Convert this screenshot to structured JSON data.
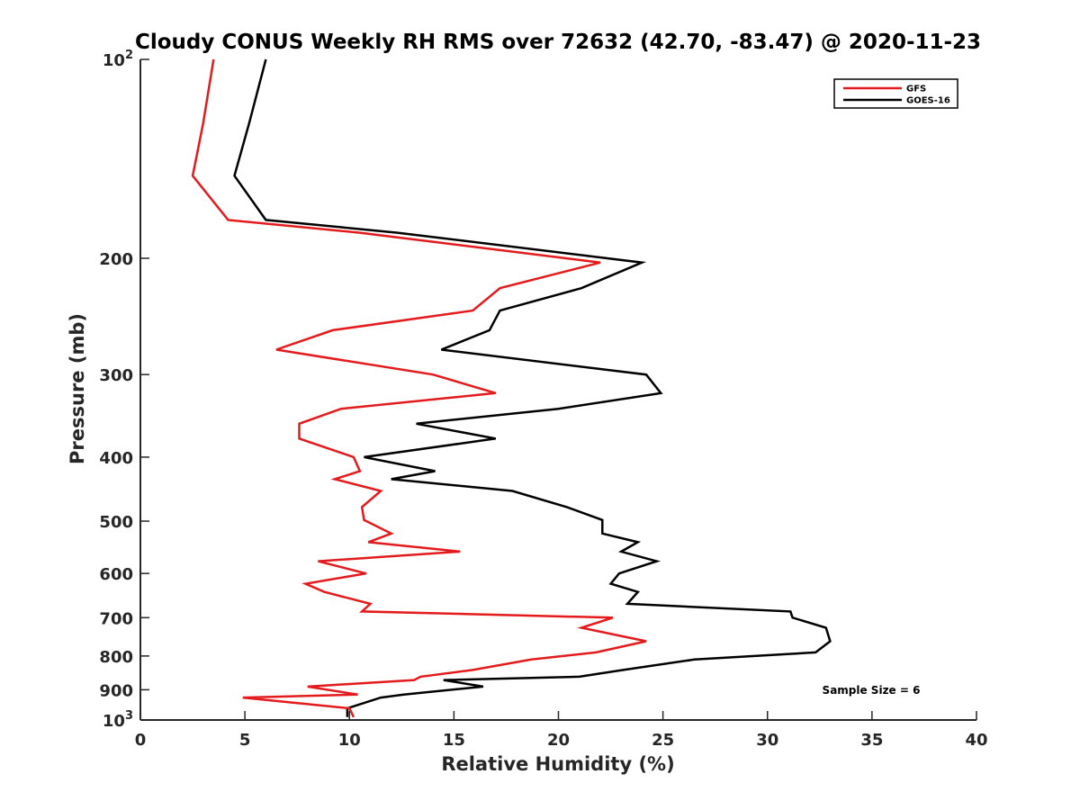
{
  "chart_data": {
    "type": "line",
    "title": "Cloudy CONUS Weekly RH RMS over 72632 (42.70, -83.47) @ 2020-11-23",
    "xlabel": "Relative Humidity (%)",
    "ylabel": "Pressure (mb)",
    "xlim": [
      0,
      40
    ],
    "ylim": [
      100,
      1000
    ],
    "y_scale": "log",
    "y_reversed": true,
    "grid": false,
    "legend_position": "top-right",
    "x_ticks": [
      "0",
      "5",
      "10",
      "15",
      "20",
      "25",
      "30",
      "35",
      "40"
    ],
    "y_ticks": [
      {
        "value": 100,
        "label": "10",
        "sup": "2"
      },
      {
        "value": 200,
        "label": "200",
        "sup": ""
      },
      {
        "value": 300,
        "label": "300",
        "sup": ""
      },
      {
        "value": 400,
        "label": "400",
        "sup": ""
      },
      {
        "value": 500,
        "label": "500",
        "sup": ""
      },
      {
        "value": 600,
        "label": "600",
        "sup": ""
      },
      {
        "value": 700,
        "label": "700",
        "sup": ""
      },
      {
        "value": 800,
        "label": "800",
        "sup": ""
      },
      {
        "value": 900,
        "label": "900",
        "sup": ""
      },
      {
        "value": 1000,
        "label": "10",
        "sup": "3"
      }
    ],
    "series": [
      {
        "name": "GFS",
        "color": "#e41a1c",
        "points": [
          [
            3.5,
            100
          ],
          [
            3.0,
            125
          ],
          [
            2.5,
            150
          ],
          [
            4.2,
            175
          ],
          [
            10.5,
            183
          ],
          [
            22.0,
            203
          ],
          [
            17.2,
            222
          ],
          [
            15.9,
            240
          ],
          [
            9.2,
            257
          ],
          [
            6.5,
            275
          ],
          [
            14.0,
            300
          ],
          [
            17.0,
            320
          ],
          [
            9.6,
            338
          ],
          [
            7.6,
            356
          ],
          [
            7.6,
            375
          ],
          [
            10.2,
            400
          ],
          [
            10.5,
            420
          ],
          [
            9.3,
            432
          ],
          [
            11.5,
            450
          ],
          [
            10.6,
            476
          ],
          [
            10.7,
            498
          ],
          [
            12.0,
            522
          ],
          [
            10.9,
            538
          ],
          [
            15.3,
            556
          ],
          [
            8.5,
            575
          ],
          [
            10.8,
            600
          ],
          [
            7.9,
            622
          ],
          [
            8.8,
            640
          ],
          [
            11.0,
            667
          ],
          [
            10.6,
            685
          ],
          [
            22.6,
            700
          ],
          [
            21.1,
            725
          ],
          [
            24.2,
            760
          ],
          [
            21.8,
            790
          ],
          [
            18.7,
            810
          ],
          [
            15.9,
            840
          ],
          [
            13.4,
            860
          ],
          [
            13.1,
            870
          ],
          [
            8.0,
            890
          ],
          [
            10.4,
            915
          ],
          [
            4.9,
            925
          ],
          [
            10.0,
            960
          ],
          [
            10.2,
            990
          ]
        ]
      },
      {
        "name": "GOES-16",
        "color": "#000000",
        "points": [
          [
            6.0,
            100
          ],
          [
            5.2,
            125
          ],
          [
            4.5,
            150
          ],
          [
            6.0,
            175
          ],
          [
            12.3,
            183
          ],
          [
            24.0,
            203
          ],
          [
            21.1,
            222
          ],
          [
            17.2,
            240
          ],
          [
            16.7,
            257
          ],
          [
            14.4,
            275
          ],
          [
            24.2,
            300
          ],
          [
            24.9,
            320
          ],
          [
            20.0,
            338
          ],
          [
            13.2,
            356
          ],
          [
            17.0,
            375
          ],
          [
            10.7,
            400
          ],
          [
            14.1,
            420
          ],
          [
            12.0,
            432
          ],
          [
            17.8,
            450
          ],
          [
            20.4,
            476
          ],
          [
            22.1,
            498
          ],
          [
            22.1,
            522
          ],
          [
            23.8,
            538
          ],
          [
            23.0,
            556
          ],
          [
            24.7,
            575
          ],
          [
            22.9,
            600
          ],
          [
            22.5,
            622
          ],
          [
            23.8,
            640
          ],
          [
            23.3,
            667
          ],
          [
            31.1,
            685
          ],
          [
            31.2,
            700
          ],
          [
            32.8,
            725
          ],
          [
            33.0,
            760
          ],
          [
            32.3,
            790
          ],
          [
            26.5,
            810
          ],
          [
            23.1,
            840
          ],
          [
            21.0,
            860
          ],
          [
            14.5,
            870
          ],
          [
            16.4,
            890
          ],
          [
            12.6,
            915
          ],
          [
            11.5,
            925
          ],
          [
            9.9,
            960
          ],
          [
            9.9,
            990
          ]
        ]
      }
    ],
    "annotation": "Sample Size = 6"
  }
}
